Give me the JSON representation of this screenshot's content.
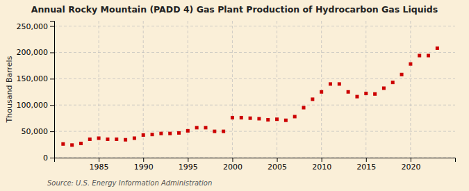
{
  "chart_data": {
    "type": "scatter",
    "title": "Annual Rocky Mountain (PADD 4) Gas Plant Production of Hydrocarbon Gas Liquids",
    "ylabel": "Thousand Barrels",
    "annotations": [
      "Source: U.S. Energy Information Administration"
    ],
    "x": [
      1981,
      1982,
      1983,
      1984,
      1985,
      1986,
      1987,
      1988,
      1989,
      1990,
      1991,
      1992,
      1993,
      1994,
      1995,
      1996,
      1997,
      1998,
      1999,
      2000,
      2001,
      2002,
      2003,
      2004,
      2005,
      2006,
      2007,
      2008,
      2009,
      2010,
      2011,
      2012,
      2013,
      2014,
      2015,
      2016,
      2017,
      2018,
      2019,
      2020,
      2021,
      2022,
      2023
    ],
    "values": [
      26000,
      24000,
      27000,
      35000,
      37000,
      35000,
      35000,
      34000,
      37000,
      43000,
      44000,
      46000,
      46000,
      47000,
      51000,
      57000,
      57000,
      50000,
      50000,
      76000,
      76000,
      75000,
      74000,
      72000,
      73000,
      71000,
      78000,
      95000,
      111000,
      125000,
      140000,
      140000,
      125000,
      116000,
      122000,
      121000,
      132000,
      143000,
      158000,
      178000,
      194000,
      194000,
      208000
    ],
    "color": "#cc0000",
    "marker": "square",
    "xlim": [
      1980,
      2025
    ],
    "xticks": [
      1985,
      1990,
      1995,
      2000,
      2005,
      2010,
      2015,
      2020
    ],
    "ylim": [
      0,
      260000
    ],
    "yticks": [
      0,
      {
        "value": 50000,
        "label": "50,000"
      },
      {
        "value": 100000,
        "label": "100,000"
      },
      {
        "value": 150000,
        "label": "150,000"
      },
      {
        "value": 200000,
        "label": "200,000"
      },
      {
        "value": 250000,
        "label": "250,000"
      }
    ],
    "grid": true
  }
}
